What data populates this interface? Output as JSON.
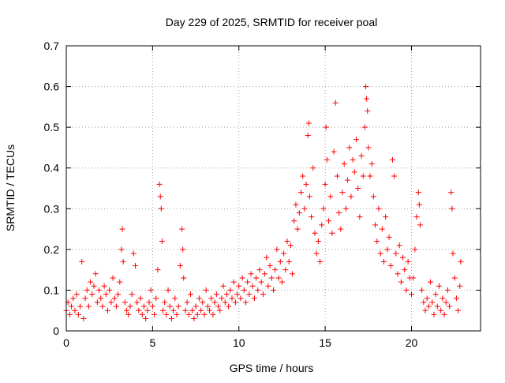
{
  "chart_data": {
    "type": "scatter",
    "title": "Day 229 of 2025, SRMTID for receiver poal",
    "xlabel": "GPS time / hours",
    "ylabel": "SRMTID / TECUs",
    "xlim": [
      0,
      24
    ],
    "ylim": [
      0,
      0.7
    ],
    "x_ticks": [
      0,
      5,
      10,
      15,
      20
    ],
    "x_tick_labels": [
      "0",
      "5",
      "10",
      "15",
      "20"
    ],
    "y_ticks": [
      0,
      0.1,
      0.2,
      0.3,
      0.4,
      0.5,
      0.6,
      0.7
    ],
    "y_tick_labels": [
      "0",
      "0.1",
      "0.2",
      "0.3",
      "0.4",
      "0.5",
      "0.6",
      "0.7"
    ],
    "grid": true,
    "marker": "+",
    "marker_color": "#ff0000",
    "series": [
      {
        "name": "SRMTID",
        "points": [
          [
            0.0,
            0.05
          ],
          [
            0.1,
            0.07
          ],
          [
            0.2,
            0.04
          ],
          [
            0.3,
            0.06
          ],
          [
            0.4,
            0.08
          ],
          [
            0.5,
            0.05
          ],
          [
            0.6,
            0.09
          ],
          [
            0.7,
            0.04
          ],
          [
            0.8,
            0.06
          ],
          [
            0.9,
            0.17
          ],
          [
            1.0,
            0.03
          ],
          [
            1.1,
            0.08
          ],
          [
            1.2,
            0.1
          ],
          [
            1.3,
            0.06
          ],
          [
            1.4,
            0.12
          ],
          [
            1.5,
            0.09
          ],
          [
            1.6,
            0.11
          ],
          [
            1.7,
            0.14
          ],
          [
            1.8,
            0.07
          ],
          [
            1.9,
            0.1
          ],
          [
            2.0,
            0.08
          ],
          [
            2.1,
            0.06
          ],
          [
            2.2,
            0.11
          ],
          [
            2.3,
            0.09
          ],
          [
            2.4,
            0.05
          ],
          [
            2.5,
            0.1
          ],
          [
            2.6,
            0.07
          ],
          [
            2.7,
            0.13
          ],
          [
            2.8,
            0.08
          ],
          [
            2.9,
            0.06
          ],
          [
            3.0,
            0.09
          ],
          [
            3.1,
            0.12
          ],
          [
            3.2,
            0.2
          ],
          [
            3.25,
            0.25
          ],
          [
            3.3,
            0.17
          ],
          [
            3.4,
            0.07
          ],
          [
            3.5,
            0.05
          ],
          [
            3.6,
            0.04
          ],
          [
            3.7,
            0.06
          ],
          [
            3.8,
            0.09
          ],
          [
            3.9,
            0.19
          ],
          [
            4.0,
            0.16
          ],
          [
            4.1,
            0.07
          ],
          [
            4.2,
            0.05
          ],
          [
            4.3,
            0.08
          ],
          [
            4.4,
            0.04
          ],
          [
            4.5,
            0.06
          ],
          [
            4.6,
            0.03
          ],
          [
            4.7,
            0.05
          ],
          [
            4.8,
            0.07
          ],
          [
            4.9,
            0.1
          ],
          [
            5.0,
            0.06
          ],
          [
            5.1,
            0.04
          ],
          [
            5.2,
            0.08
          ],
          [
            5.3,
            0.15
          ],
          [
            5.4,
            0.36
          ],
          [
            5.45,
            0.33
          ],
          [
            5.5,
            0.3
          ],
          [
            5.55,
            0.22
          ],
          [
            5.6,
            0.05
          ],
          [
            5.7,
            0.07
          ],
          [
            5.8,
            0.04
          ],
          [
            5.9,
            0.1
          ],
          [
            6.0,
            0.06
          ],
          [
            6.1,
            0.03
          ],
          [
            6.2,
            0.05
          ],
          [
            6.3,
            0.08
          ],
          [
            6.4,
            0.04
          ],
          [
            6.5,
            0.06
          ],
          [
            6.6,
            0.16
          ],
          [
            6.7,
            0.25
          ],
          [
            6.75,
            0.2
          ],
          [
            6.8,
            0.13
          ],
          [
            6.9,
            0.05
          ],
          [
            7.0,
            0.07
          ],
          [
            7.1,
            0.04
          ],
          [
            7.2,
            0.09
          ],
          [
            7.3,
            0.05
          ],
          [
            7.4,
            0.03
          ],
          [
            7.5,
            0.06
          ],
          [
            7.6,
            0.04
          ],
          [
            7.7,
            0.08
          ],
          [
            7.8,
            0.05
          ],
          [
            7.9,
            0.07
          ],
          [
            8.0,
            0.04
          ],
          [
            8.1,
            0.1
          ],
          [
            8.2,
            0.06
          ],
          [
            8.3,
            0.05
          ],
          [
            8.4,
            0.08
          ],
          [
            8.5,
            0.04
          ],
          [
            8.6,
            0.07
          ],
          [
            8.7,
            0.09
          ],
          [
            8.8,
            0.06
          ],
          [
            8.9,
            0.05
          ],
          [
            9.0,
            0.08
          ],
          [
            9.1,
            0.11
          ],
          [
            9.2,
            0.07
          ],
          [
            9.3,
            0.09
          ],
          [
            9.4,
            0.06
          ],
          [
            9.5,
            0.1
          ],
          [
            9.6,
            0.08
          ],
          [
            9.7,
            0.12
          ],
          [
            9.8,
            0.07
          ],
          [
            9.9,
            0.09
          ],
          [
            10.0,
            0.11
          ],
          [
            10.1,
            0.08
          ],
          [
            10.2,
            0.13
          ],
          [
            10.3,
            0.1
          ],
          [
            10.4,
            0.07
          ],
          [
            10.5,
            0.12
          ],
          [
            10.6,
            0.09
          ],
          [
            10.7,
            0.14
          ],
          [
            10.8,
            0.11
          ],
          [
            10.9,
            0.08
          ],
          [
            11.0,
            0.13
          ],
          [
            11.1,
            0.1
          ],
          [
            11.2,
            0.15
          ],
          [
            11.3,
            0.12
          ],
          [
            11.4,
            0.09
          ],
          [
            11.5,
            0.14
          ],
          [
            11.6,
            0.18
          ],
          [
            11.7,
            0.11
          ],
          [
            11.8,
            0.16
          ],
          [
            11.9,
            0.13
          ],
          [
            12.0,
            0.1
          ],
          [
            12.1,
            0.15
          ],
          [
            12.2,
            0.2
          ],
          [
            12.3,
            0.13
          ],
          [
            12.4,
            0.17
          ],
          [
            12.5,
            0.12
          ],
          [
            12.6,
            0.19
          ],
          [
            12.7,
            0.15
          ],
          [
            12.8,
            0.22
          ],
          [
            12.9,
            0.17
          ],
          [
            13.0,
            0.21
          ],
          [
            13.1,
            0.14
          ],
          [
            13.2,
            0.27
          ],
          [
            13.3,
            0.31
          ],
          [
            13.4,
            0.25
          ],
          [
            13.5,
            0.29
          ],
          [
            13.6,
            0.34
          ],
          [
            13.7,
            0.38
          ],
          [
            13.8,
            0.3
          ],
          [
            13.9,
            0.36
          ],
          [
            14.0,
            0.48
          ],
          [
            14.05,
            0.51
          ],
          [
            14.1,
            0.33
          ],
          [
            14.2,
            0.28
          ],
          [
            14.3,
            0.4
          ],
          [
            14.4,
            0.24
          ],
          [
            14.5,
            0.19
          ],
          [
            14.6,
            0.22
          ],
          [
            14.7,
            0.17
          ],
          [
            14.8,
            0.26
          ],
          [
            14.9,
            0.3
          ],
          [
            15.0,
            0.36
          ],
          [
            15.05,
            0.5
          ],
          [
            15.1,
            0.42
          ],
          [
            15.2,
            0.27
          ],
          [
            15.3,
            0.33
          ],
          [
            15.4,
            0.24
          ],
          [
            15.5,
            0.44
          ],
          [
            15.6,
            0.56
          ],
          [
            15.7,
            0.38
          ],
          [
            15.8,
            0.29
          ],
          [
            15.9,
            0.25
          ],
          [
            16.0,
            0.34
          ],
          [
            16.1,
            0.41
          ],
          [
            16.2,
            0.3
          ],
          [
            16.3,
            0.37
          ],
          [
            16.4,
            0.45
          ],
          [
            16.5,
            0.33
          ],
          [
            16.6,
            0.42
          ],
          [
            16.7,
            0.39
          ],
          [
            16.8,
            0.47
          ],
          [
            16.9,
            0.35
          ],
          [
            17.0,
            0.28
          ],
          [
            17.1,
            0.43
          ],
          [
            17.2,
            0.38
          ],
          [
            17.3,
            0.5
          ],
          [
            17.35,
            0.6
          ],
          [
            17.4,
            0.57
          ],
          [
            17.45,
            0.54
          ],
          [
            17.5,
            0.45
          ],
          [
            17.6,
            0.38
          ],
          [
            17.7,
            0.41
          ],
          [
            17.8,
            0.33
          ],
          [
            17.9,
            0.26
          ],
          [
            18.0,
            0.22
          ],
          [
            18.1,
            0.3
          ],
          [
            18.2,
            0.19
          ],
          [
            18.3,
            0.25
          ],
          [
            18.4,
            0.17
          ],
          [
            18.5,
            0.28
          ],
          [
            18.6,
            0.2
          ],
          [
            18.7,
            0.23
          ],
          [
            18.8,
            0.16
          ],
          [
            18.9,
            0.42
          ],
          [
            19.0,
            0.38
          ],
          [
            19.1,
            0.19
          ],
          [
            19.2,
            0.14
          ],
          [
            19.3,
            0.21
          ],
          [
            19.4,
            0.12
          ],
          [
            19.5,
            0.18
          ],
          [
            19.6,
            0.15
          ],
          [
            19.7,
            0.1
          ],
          [
            19.8,
            0.17
          ],
          [
            19.9,
            0.13
          ],
          [
            20.0,
            0.09
          ],
          [
            20.1,
            0.13
          ],
          [
            20.2,
            0.2
          ],
          [
            20.3,
            0.28
          ],
          [
            20.4,
            0.34
          ],
          [
            20.45,
            0.31
          ],
          [
            20.5,
            0.26
          ],
          [
            20.6,
            0.1
          ],
          [
            20.7,
            0.07
          ],
          [
            20.8,
            0.05
          ],
          [
            20.9,
            0.08
          ],
          [
            21.0,
            0.06
          ],
          [
            21.1,
            0.12
          ],
          [
            21.2,
            0.07
          ],
          [
            21.3,
            0.04
          ],
          [
            21.4,
            0.09
          ],
          [
            21.5,
            0.06
          ],
          [
            21.6,
            0.11
          ],
          [
            21.7,
            0.05
          ],
          [
            21.8,
            0.08
          ],
          [
            21.9,
            0.04
          ],
          [
            22.0,
            0.07
          ],
          [
            22.1,
            0.1
          ],
          [
            22.2,
            0.06
          ],
          [
            22.3,
            0.34
          ],
          [
            22.35,
            0.3
          ],
          [
            22.4,
            0.19
          ],
          [
            22.5,
            0.13
          ],
          [
            22.6,
            0.08
          ],
          [
            22.7,
            0.05
          ],
          [
            22.8,
            0.11
          ],
          [
            22.85,
            0.17
          ]
        ]
      }
    ]
  }
}
